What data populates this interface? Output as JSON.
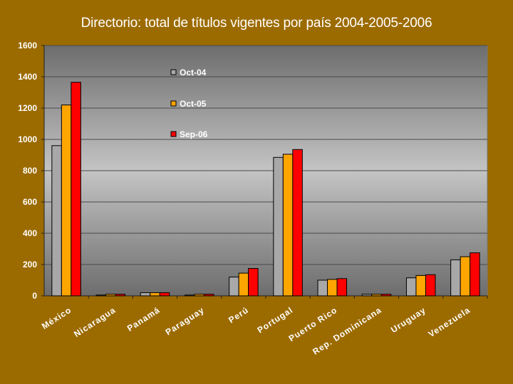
{
  "colors": {
    "background": "#9c6b00",
    "plot_top": "#6d6d6d",
    "plot_mid": "#c4c4c4",
    "gridline": "#4a4a4a",
    "series": [
      "#a8a8a8",
      "#ffa500",
      "#ff0000"
    ]
  },
  "chart_data": {
    "type": "bar",
    "title": "Directorio: total de títulos vigentes por país 2004-2005-2006",
    "xlabel": "",
    "ylabel": "",
    "ylim": [
      0,
      1600
    ],
    "yticks": [
      0,
      200,
      400,
      600,
      800,
      1000,
      1200,
      1400,
      1600
    ],
    "grid": true,
    "legend_position": "top-center",
    "categories": [
      "México",
      "Nicaragua",
      "Panamá",
      "Paraguay",
      "Perú",
      "Portugal",
      "Puerto Rico",
      "Rep. Dominicana",
      "Uruguay",
      "Venezuela"
    ],
    "series": [
      {
        "name": "Oct-04",
        "values": [
          960,
          5,
          20,
          5,
          120,
          885,
          100,
          10,
          115,
          230
        ]
      },
      {
        "name": "Oct-05",
        "values": [
          1220,
          10,
          20,
          10,
          145,
          905,
          105,
          10,
          130,
          250
        ]
      },
      {
        "name": "Sep-06",
        "values": [
          1365,
          10,
          20,
          10,
          175,
          935,
          110,
          10,
          135,
          275
        ]
      }
    ]
  }
}
